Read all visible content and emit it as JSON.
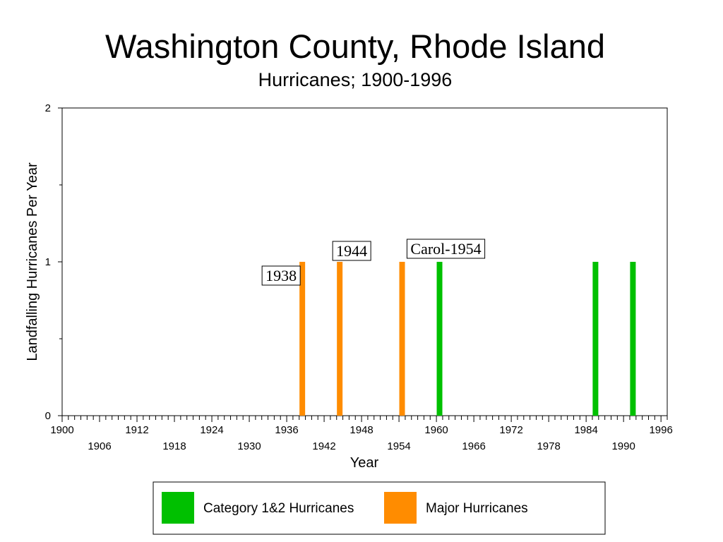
{
  "chart_data": {
    "type": "bar",
    "title": "Washington County, Rhode Island",
    "subtitle": "Hurricanes;  1900-1996",
    "xlabel": "Year",
    "ylabel": "Landfalling Hurricanes Per Year",
    "xlim": [
      1900,
      1997
    ],
    "ylim": [
      0,
      2
    ],
    "y_ticks": [
      0,
      1,
      2
    ],
    "x_tick_labels_row1": [
      1900,
      1912,
      1924,
      1936,
      1948,
      1960,
      1972,
      1984,
      1996
    ],
    "x_tick_labels_row2": [
      1906,
      1918,
      1930,
      1942,
      1954,
      1966,
      1978,
      1990
    ],
    "series": [
      {
        "name": "Category 1&2 Hurricanes",
        "color": "#00c000",
        "points": [
          {
            "year": 1960,
            "value": 1
          },
          {
            "year": 1985,
            "value": 1
          },
          {
            "year": 1991,
            "value": 1
          }
        ]
      },
      {
        "name": "Major Hurricanes",
        "color": "#ff8c00",
        "points": [
          {
            "year": 1938,
            "value": 1
          },
          {
            "year": 1944,
            "value": 1
          },
          {
            "year": 1954,
            "value": 1
          }
        ]
      }
    ],
    "annotations": [
      {
        "text": "1938",
        "year": 1938
      },
      {
        "text": "1944",
        "year": 1944
      },
      {
        "text": "Carol-1954",
        "year": 1954
      }
    ],
    "legend": {
      "placement": "bottom-center",
      "boxed": true
    },
    "grid": false
  }
}
